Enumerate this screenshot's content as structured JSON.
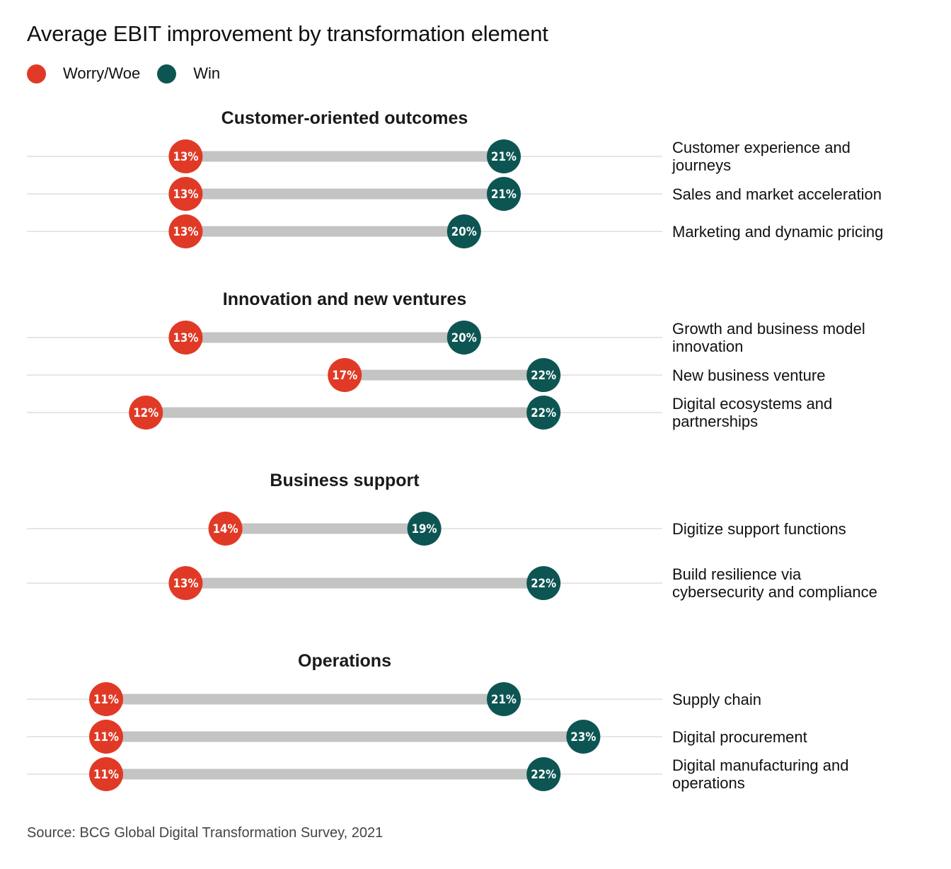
{
  "header": {
    "title": "Average EBIT improvement by transformation element"
  },
  "legend": [
    {
      "label": "Worry/Woe",
      "color": "#e03a26"
    },
    {
      "label": "Win",
      "color": "#0d5552"
    }
  ],
  "source": "Source: BCG Global Digital Transformation Survey, 2021",
  "chart_data": {
    "type": "dumbbell",
    "title": "Average EBIT improvement by transformation element",
    "unit": "%",
    "xlim": [
      9,
      24
    ],
    "grid": false,
    "legend_position": "top-left",
    "colors": {
      "worry": "#e03a26",
      "win": "#0d5552",
      "bar": "#c4c4c4",
      "baseline": "#e6e6e6"
    },
    "series": [
      {
        "name": "Worry/Woe"
      },
      {
        "name": "Win"
      }
    ],
    "groups": [
      {
        "title": "Customer-oriented outcomes",
        "rows": [
          {
            "label": [
              "Customer experience and",
              "journeys"
            ],
            "worry": 13,
            "win": 21
          },
          {
            "label": [
              "Sales and market acceleration"
            ],
            "worry": 13,
            "win": 21
          },
          {
            "label": [
              "Marketing and dynamic pricing"
            ],
            "worry": 13,
            "win": 20
          }
        ]
      },
      {
        "title": "Innovation and new ventures",
        "rows": [
          {
            "label": [
              "Growth and business model",
              "innovation"
            ],
            "worry": 13,
            "win": 20
          },
          {
            "label": [
              "New business venture"
            ],
            "worry": 17,
            "win": 22
          },
          {
            "label": [
              "Digital ecosystems and",
              "partnerships"
            ],
            "worry": 12,
            "win": 22
          }
        ]
      },
      {
        "title": "Business support",
        "rows": [
          {
            "label": [
              "Digitize support functions"
            ],
            "worry": 14,
            "win": 19
          },
          {
            "label": [
              "Build resilience via",
              "cybersecurity and compliance"
            ],
            "worry": 13,
            "win": 22
          }
        ]
      },
      {
        "title": "Operations",
        "rows": [
          {
            "label": [
              "Supply chain"
            ],
            "worry": 11,
            "win": 21
          },
          {
            "label": [
              "Digital procurement"
            ],
            "worry": 11,
            "win": 23
          },
          {
            "label": [
              "Digital manufacturing and",
              "operations"
            ],
            "worry": 11,
            "win": 22
          }
        ]
      }
    ]
  }
}
